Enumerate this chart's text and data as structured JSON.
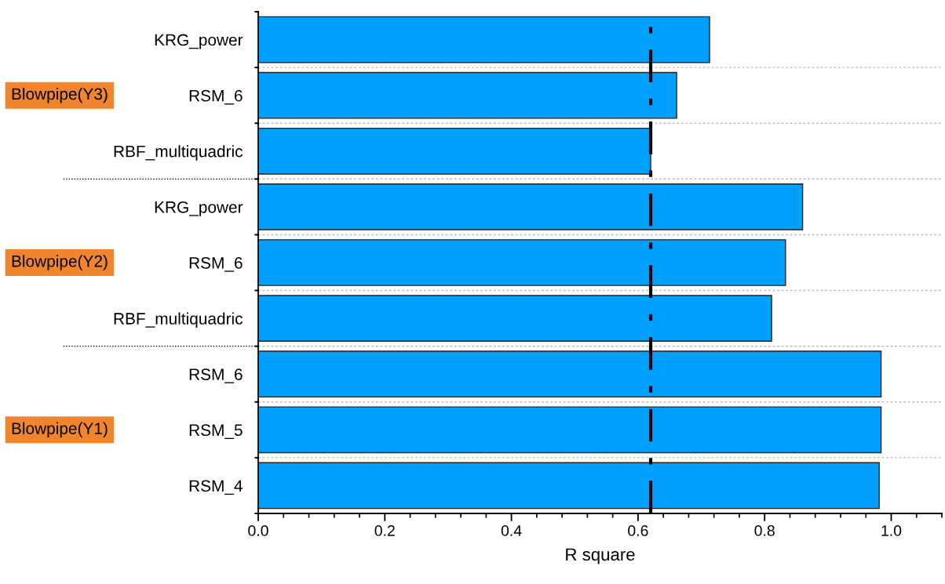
{
  "chart_data": {
    "type": "bar",
    "orientation": "horizontal",
    "xlabel": "R square",
    "categories": [
      "KRG_power",
      "RSM_6",
      "RBF_multiquadric",
      "KRG_power",
      "RSM_6",
      "RBF_multiquadric",
      "RSM_6",
      "RSM_5",
      "RSM_4"
    ],
    "values": [
      0.713,
      0.661,
      0.62,
      0.86,
      0.833,
      0.811,
      0.984,
      0.984,
      0.981
    ],
    "color": "#00a0ff",
    "xlim": [
      0,
      1.08
    ],
    "xticks": [
      {
        "value": 0,
        "label": "0.0"
      },
      0.2,
      0.4,
      0.6,
      0.8,
      {
        "value": 1,
        "label": "1.0"
      }
    ],
    "ref_lines": [
      {
        "axis": "x",
        "value": 0.62,
        "line_style": "dashdot",
        "color": "#000000"
      }
    ],
    "annotations": [
      "Blowpipe(Y3)",
      "Blowpipe(Y2)",
      "Blowpipe(Y1)"
    ],
    "grid": "y"
  }
}
